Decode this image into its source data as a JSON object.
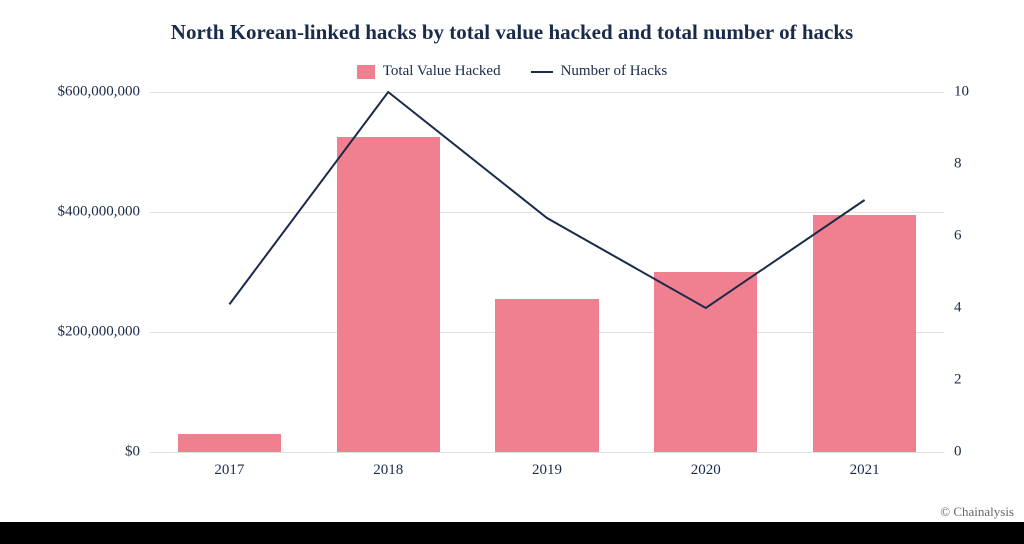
{
  "title": "North Korean-linked hacks by total value hacked and total number of hacks",
  "legend": {
    "bar_label": "Total Value Hacked",
    "line_label": "Number of Hacks"
  },
  "chart": {
    "type": "bar+line",
    "categories": [
      "2017",
      "2018",
      "2019",
      "2020",
      "2021"
    ],
    "bar_values": [
      30000000,
      525000000,
      255000000,
      300000000,
      395000000
    ],
    "line_values": [
      4.1,
      10,
      6.5,
      4,
      7
    ],
    "bar_color": "#f08090",
    "line_color": "#1a2b4a",
    "line_width": 2,
    "left_axis": {
      "min": 0,
      "max": 600000000,
      "ticks": [
        0,
        200000000,
        400000000,
        600000000
      ],
      "tick_labels": [
        "$0",
        "$200,000,000",
        "$400,000,000",
        "$600,000,000"
      ]
    },
    "right_axis": {
      "min": 0,
      "max": 10,
      "ticks": [
        0,
        2,
        4,
        6,
        8,
        10
      ],
      "tick_labels": [
        "0",
        "2",
        "4",
        "6",
        "8",
        "10"
      ]
    },
    "background_color": "#ffffff",
    "grid_color": "#e0e0e0",
    "text_color": "#1a2b4a",
    "bar_rel_width": 0.65,
    "title_fontsize": 21,
    "label_fontsize": 15
  },
  "attribution": "© Chainalysis"
}
